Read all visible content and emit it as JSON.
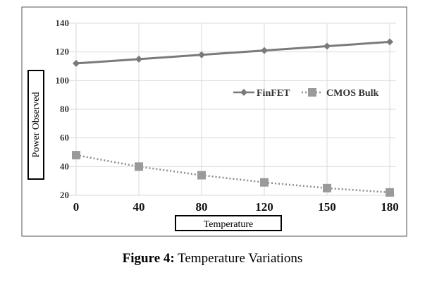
{
  "chart_data": {
    "type": "line",
    "x": [
      0,
      40,
      80,
      120,
      150,
      180
    ],
    "xticks": [
      "0",
      "40",
      "80",
      "120",
      "150",
      "180"
    ],
    "xlabel": "Temperature",
    "ylabel": "Power Observed",
    "ylim": [
      20,
      140
    ],
    "yticks": [
      20,
      40,
      60,
      80,
      100,
      120,
      140
    ],
    "grid": true,
    "legend_position": "right",
    "series": [
      {
        "name": "FinFET",
        "values": [
          112,
          115,
          118,
          121,
          124,
          127
        ],
        "color": "#7a7a7a",
        "marker": "diamond",
        "line": "solid"
      },
      {
        "name": "CMOS Bulk",
        "values": [
          48,
          40,
          34,
          29,
          25,
          22
        ],
        "color": "#8a8a8a",
        "marker": "square",
        "line": "dotted"
      }
    ]
  },
  "caption": {
    "label": "Figure 4:",
    "text": "Temperature Variations"
  }
}
